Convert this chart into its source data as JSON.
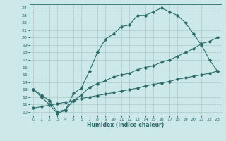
{
  "title": "",
  "xlabel": "Humidex (Indice chaleur)",
  "bg_color": "#cde8e8",
  "grid_color": "#aacccc",
  "line_color": "#2d6b6b",
  "xlim": [
    -0.5,
    23.5
  ],
  "ylim": [
    9.5,
    24.5
  ],
  "xticks": [
    0,
    1,
    2,
    3,
    4,
    5,
    6,
    7,
    8,
    9,
    10,
    11,
    12,
    13,
    14,
    15,
    16,
    17,
    18,
    19,
    20,
    21,
    22,
    23
  ],
  "yticks": [
    10,
    11,
    12,
    13,
    14,
    15,
    16,
    17,
    18,
    19,
    20,
    21,
    22,
    23,
    24
  ],
  "line1_x": [
    0,
    1,
    2,
    3,
    4,
    5,
    6,
    7,
    8,
    9,
    10,
    11,
    12,
    13,
    14,
    15,
    16,
    17,
    18,
    19,
    20,
    21,
    22,
    23
  ],
  "line1_y": [
    13,
    12,
    11,
    9.8,
    10.2,
    12.5,
    13.2,
    15.5,
    18,
    19.8,
    20.5,
    21.5,
    21.7,
    23,
    23,
    23.5,
    24,
    23.5,
    23,
    22,
    20.5,
    19,
    17,
    15.5
  ],
  "line2_x": [
    0,
    1,
    2,
    3,
    4,
    5,
    6,
    7,
    8,
    9,
    10,
    11,
    12,
    13,
    14,
    15,
    16,
    17,
    18,
    19,
    20,
    21,
    22,
    23
  ],
  "line2_y": [
    13,
    12.3,
    11.5,
    10.0,
    10.3,
    11.5,
    12.3,
    13.3,
    13.8,
    14.2,
    14.7,
    15.0,
    15.2,
    15.7,
    16.0,
    16.2,
    16.7,
    17.0,
    17.5,
    18.0,
    18.5,
    19.2,
    19.5,
    20.0
  ],
  "line3_x": [
    0,
    1,
    2,
    3,
    4,
    5,
    6,
    7,
    8,
    9,
    10,
    11,
    12,
    13,
    14,
    15,
    16,
    17,
    18,
    19,
    20,
    21,
    22,
    23
  ],
  "line3_y": [
    10.5,
    10.7,
    10.9,
    11.1,
    11.3,
    11.5,
    11.8,
    12.0,
    12.2,
    12.4,
    12.6,
    12.8,
    13.0,
    13.2,
    13.5,
    13.7,
    13.9,
    14.1,
    14.4,
    14.6,
    14.8,
    15.0,
    15.2,
    15.5
  ]
}
